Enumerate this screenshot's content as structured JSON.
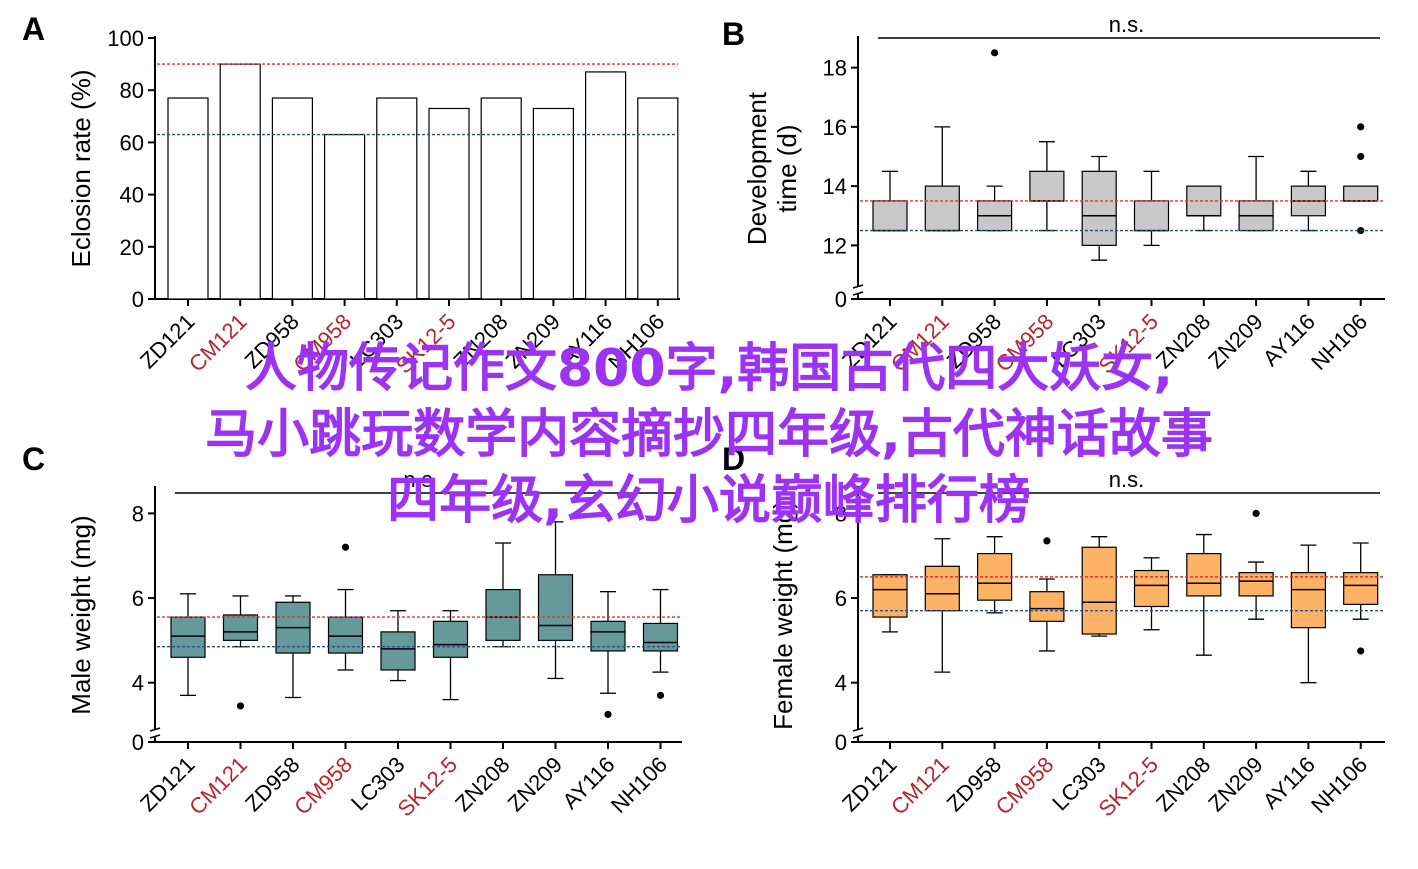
{
  "watermark": {
    "lines": [
      "人物传记作文800字,韩国古代四大妖女,",
      "马小跳玩数学内容摘抄四年级,古代神话故事",
      "四年级,玄幻小说巅峰排行榜"
    ]
  },
  "colors": {
    "red_ref": "#e03030",
    "blue_ref": "#2f4b8f",
    "label_red": "#b3282d",
    "boxB": "#c8c8c8",
    "boxC": "#66999a",
    "boxD": "#fdb365",
    "watermark": "#9d33f2"
  },
  "chart_data": [
    {
      "panel": "A",
      "type": "bar",
      "ylabel": "Eclosion rate (%)",
      "ylim": [
        0,
        100
      ],
      "yticks": [
        0,
        20,
        40,
        60,
        80,
        100
      ],
      "categories": [
        "ZD121",
        "CM121",
        "ZD958",
        "CM958",
        "LC303",
        "SK12-5",
        "ZN208",
        "ZN209",
        "AY116",
        "NH106"
      ],
      "red_categories": [
        "CM121",
        "CM958",
        "SK12-5"
      ],
      "values": [
        77,
        90,
        77,
        63,
        77,
        73,
        77,
        73,
        87,
        77
      ],
      "ref_lines": [
        {
          "value": 90,
          "color": "red"
        },
        {
          "value": 63,
          "color": "blue"
        }
      ],
      "significance": ""
    },
    {
      "panel": "B",
      "type": "box",
      "ylabel": "Development time (d)",
      "ylim": [
        11,
        19
      ],
      "yticks": [
        12,
        14,
        16,
        18
      ],
      "axis_break": "0",
      "significance": "n.s.",
      "categories": [
        "ZD121",
        "CM121",
        "ZD958",
        "CM958",
        "LC303",
        "SK12-5",
        "ZN208",
        "ZN209",
        "AY116",
        "NH106"
      ],
      "red_categories": [
        "CM121",
        "CM958",
        "SK12-5"
      ],
      "boxes": [
        {
          "min": 12.5,
          "q1": 12.5,
          "median": 12.5,
          "q3": 13.5,
          "max": 14.5,
          "outliers": []
        },
        {
          "min": 12.5,
          "q1": 12.5,
          "median": 12.5,
          "q3": 14,
          "max": 16,
          "outliers": []
        },
        {
          "min": 12.5,
          "q1": 12.5,
          "median": 13,
          "q3": 13.5,
          "max": 14,
          "outliers": [
            18.5
          ]
        },
        {
          "min": 12.5,
          "q1": 13.5,
          "median": 13.5,
          "q3": 14.5,
          "max": 15.5,
          "outliers": []
        },
        {
          "min": 11.5,
          "q1": 12,
          "median": 13,
          "q3": 14.5,
          "max": 15,
          "outliers": []
        },
        {
          "min": 12,
          "q1": 12.5,
          "median": 12.5,
          "q3": 13.5,
          "max": 14.5,
          "outliers": []
        },
        {
          "min": 12.5,
          "q1": 13,
          "median": 13,
          "q3": 14,
          "max": 14,
          "outliers": []
        },
        {
          "min": 12.5,
          "q1": 12.5,
          "median": 13,
          "q3": 13.5,
          "max": 15,
          "outliers": []
        },
        {
          "min": 12.5,
          "q1": 13,
          "median": 13.5,
          "q3": 14,
          "max": 14.5,
          "outliers": []
        },
        {
          "min": 13.5,
          "q1": 13.5,
          "median": 13.5,
          "q3": 14,
          "max": 14,
          "outliers": [
            16,
            15,
            12.5
          ]
        }
      ],
      "ref_lines": [
        {
          "value": 13.5,
          "color": "red"
        },
        {
          "value": 12.5,
          "color": "blue"
        }
      ]
    },
    {
      "panel": "C",
      "type": "box",
      "ylabel": "Male weight (mg)",
      "ylim": [
        3,
        8.6
      ],
      "yticks": [
        4,
        6,
        8
      ],
      "axis_break": "0",
      "significance": "n.s",
      "categories": [
        "ZD121",
        "CM121",
        "ZD958",
        "CM958",
        "LC303",
        "SK12-5",
        "ZN208",
        "ZN209",
        "AY116",
        "NH106"
      ],
      "red_categories": [
        "CM121",
        "CM958",
        "SK12-5"
      ],
      "boxes": [
        {
          "min": 3.7,
          "q1": 4.6,
          "median": 5.1,
          "q3": 5.55,
          "max": 6.1,
          "outliers": []
        },
        {
          "min": 4.85,
          "q1": 5.0,
          "median": 5.2,
          "q3": 5.6,
          "max": 6.05,
          "outliers": [
            3.45
          ]
        },
        {
          "min": 3.65,
          "q1": 4.7,
          "median": 5.3,
          "q3": 5.9,
          "max": 6.05,
          "outliers": []
        },
        {
          "min": 4.3,
          "q1": 4.7,
          "median": 5.1,
          "q3": 5.55,
          "max": 6.2,
          "outliers": [
            7.2
          ]
        },
        {
          "min": 4.05,
          "q1": 4.3,
          "median": 4.8,
          "q3": 5.2,
          "max": 5.7,
          "outliers": []
        },
        {
          "min": 3.6,
          "q1": 4.6,
          "median": 4.9,
          "q3": 5.45,
          "max": 5.7,
          "outliers": []
        },
        {
          "min": 4.85,
          "q1": 5.0,
          "median": 5.55,
          "q3": 6.2,
          "max": 7.3,
          "outliers": []
        },
        {
          "min": 4.1,
          "q1": 5.0,
          "median": 5.35,
          "q3": 6.55,
          "max": 7.8,
          "outliers": []
        },
        {
          "min": 3.75,
          "q1": 4.75,
          "median": 5.2,
          "q3": 5.45,
          "max": 6.15,
          "outliers": [
            3.25
          ]
        },
        {
          "min": 4.25,
          "q1": 4.75,
          "median": 4.95,
          "q3": 5.4,
          "max": 6.2,
          "outliers": [
            3.7
          ]
        }
      ],
      "ref_lines": [
        {
          "value": 5.55,
          "color": "red"
        },
        {
          "value": 4.85,
          "color": "blue"
        }
      ]
    },
    {
      "panel": "D",
      "type": "box",
      "ylabel": "Female weight (mg)",
      "ylim": [
        3,
        8.6
      ],
      "yticks": [
        4,
        6,
        8
      ],
      "axis_break": "0",
      "significance": "n.s.",
      "categories": [
        "ZD121",
        "CM121",
        "ZD958",
        "CM958",
        "LC303",
        "SK12-5",
        "ZN208",
        "ZN209",
        "AY116",
        "NH106"
      ],
      "red_categories": [
        "CM121",
        "CM958",
        "SK12-5"
      ],
      "boxes": [
        {
          "min": 5.2,
          "q1": 5.55,
          "median": 6.2,
          "q3": 6.55,
          "max": 6.55,
          "outliers": []
        },
        {
          "min": 4.25,
          "q1": 5.7,
          "median": 6.1,
          "q3": 6.75,
          "max": 7.4,
          "outliers": []
        },
        {
          "min": 5.65,
          "q1": 5.95,
          "median": 6.35,
          "q3": 7.05,
          "max": 7.45,
          "outliers": []
        },
        {
          "min": 4.75,
          "q1": 5.45,
          "median": 5.75,
          "q3": 6.15,
          "max": 6.45,
          "outliers": [
            7.35
          ]
        },
        {
          "min": 5.1,
          "q1": 5.15,
          "median": 5.9,
          "q3": 7.2,
          "max": 7.45,
          "outliers": []
        },
        {
          "min": 5.25,
          "q1": 5.8,
          "median": 6.3,
          "q3": 6.65,
          "max": 6.95,
          "outliers": []
        },
        {
          "min": 4.65,
          "q1": 6.05,
          "median": 6.35,
          "q3": 7.05,
          "max": 7.5,
          "outliers": []
        },
        {
          "min": 5.5,
          "q1": 6.05,
          "median": 6.4,
          "q3": 6.6,
          "max": 6.85,
          "outliers": [
            8.0
          ]
        },
        {
          "min": 4.0,
          "q1": 5.3,
          "median": 6.2,
          "q3": 6.6,
          "max": 7.25,
          "outliers": []
        },
        {
          "min": 5.5,
          "q1": 5.85,
          "median": 6.3,
          "q3": 6.6,
          "max": 7.3,
          "outliers": [
            4.75
          ]
        }
      ],
      "ref_lines": [
        {
          "value": 6.5,
          "color": "red"
        },
        {
          "value": 5.7,
          "color": "blue"
        }
      ]
    }
  ]
}
